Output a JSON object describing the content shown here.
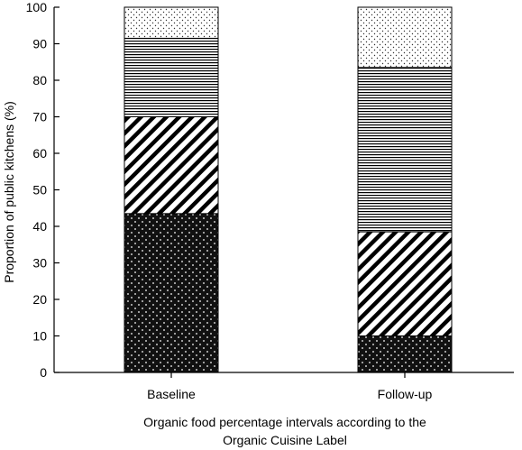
{
  "chart_data": {
    "type": "bar",
    "stacked": true,
    "categories": [
      "Baseline",
      "Follow-up"
    ],
    "series": [
      {
        "pattern": "black-with-white-dots",
        "values": [
          43.5,
          10
        ]
      },
      {
        "pattern": "diagonal-stripes",
        "values": [
          26.5,
          28.5
        ]
      },
      {
        "pattern": "horizontal-lines",
        "values": [
          21.5,
          45
        ]
      },
      {
        "pattern": "light-dots",
        "values": [
          8.5,
          16.5
        ]
      }
    ],
    "xlabel_line1": "Organic food percentage intervals according to the",
    "xlabel_line2": "Organic Cuisine Label",
    "ylabel": "Proportion of public kitchens (%)",
    "ylim": [
      0,
      100
    ],
    "yticks": [
      "0",
      "10",
      "20",
      "30",
      "40",
      "50",
      "60",
      "70",
      "80",
      "90",
      "100"
    ],
    "grid": false,
    "legend": "none"
  }
}
